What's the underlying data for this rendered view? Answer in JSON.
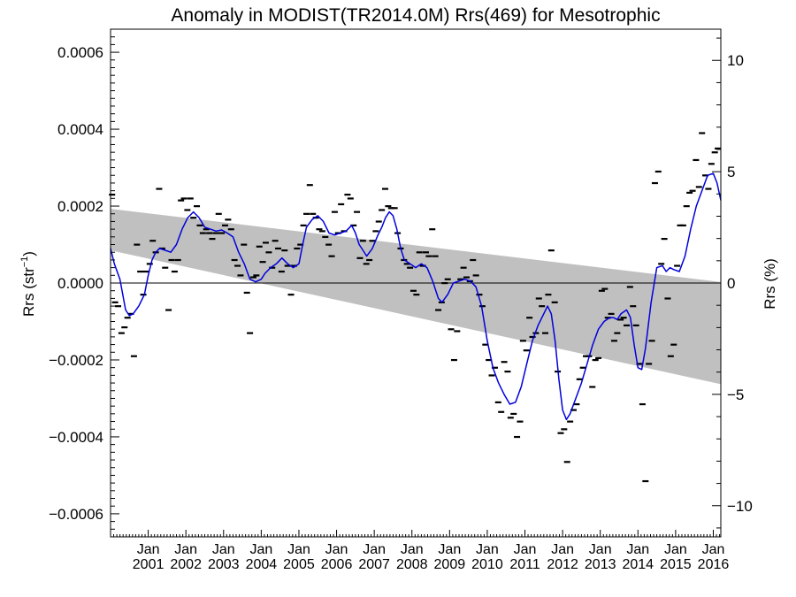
{
  "chart_data": {
    "type": "line",
    "title": "Anomaly in MODIST(TR2014.0M) Rrs(469) for Mesotrophic",
    "ylabel_base": "Rrs (str",
    "ylabel_sup": "−1",
    "ylabel_close": ")",
    "y2label": "Rrs (%)",
    "ylim": [
      -0.00066,
      0.00066
    ],
    "y2lim": [
      -11.4,
      11.4
    ],
    "yticks": [
      {
        "value": -0.0006,
        "label": "−0.0006"
      },
      {
        "value": -0.0004,
        "label": "−0.0004"
      },
      {
        "value": -0.0002,
        "label": "−0.0002"
      },
      {
        "value": 0.0,
        "label": "0.0000"
      },
      {
        "value": 0.0002,
        "label": "0.0002"
      },
      {
        "value": 0.0004,
        "label": "0.0004"
      },
      {
        "value": 0.0006,
        "label": "0.0006"
      }
    ],
    "y2ticks": [
      {
        "value": -10,
        "label": "−10"
      },
      {
        "value": -5,
        "label": "−5"
      },
      {
        "value": 0,
        "label": "0"
      },
      {
        "value": 5,
        "label": "5"
      },
      {
        "value": 10,
        "label": "10"
      }
    ],
    "xlim": [
      2000.0,
      2016.2
    ],
    "xticks": [
      {
        "value": 2001,
        "line1": "Jan",
        "line2": "2001"
      },
      {
        "value": 2002,
        "line1": "Jan",
        "line2": "2002"
      },
      {
        "value": 2003,
        "line1": "Jan",
        "line2": "2003"
      },
      {
        "value": 2004,
        "line1": "Jan",
        "line2": "2004"
      },
      {
        "value": 2005,
        "line1": "Jan",
        "line2": "2005"
      },
      {
        "value": 2006,
        "line1": "Jan",
        "line2": "2006"
      },
      {
        "value": 2007,
        "line1": "Jan",
        "line2": "2007"
      },
      {
        "value": 2008,
        "line1": "Jan",
        "line2": "2008"
      },
      {
        "value": 2009,
        "line1": "Jan",
        "line2": "2009"
      },
      {
        "value": 2010,
        "line1": "Jan",
        "line2": "2010"
      },
      {
        "value": 2011,
        "line1": "Jan",
        "line2": "2011"
      },
      {
        "value": 2012,
        "line1": "Jan",
        "line2": "2012"
      },
      {
        "value": 2013,
        "line1": "Jan",
        "line2": "2013"
      },
      {
        "value": 2014,
        "line1": "Jan",
        "line2": "2014"
      },
      {
        "value": 2015,
        "line1": "Jan",
        "line2": "2015"
      },
      {
        "value": 2016,
        "line1": "Jan",
        "line2": "2016"
      }
    ],
    "trend_band": {
      "upper": [
        [
          2000.0,
          0.000193
        ],
        [
          2016.2,
          2.5e-06
        ]
      ],
      "lower": [
        [
          2000.0,
          8.5e-05
        ],
        [
          2016.2,
          -0.000263
        ]
      ],
      "color": "#c0c0c0"
    },
    "zero_line": 0.0,
    "smoothed_series": {
      "color": "#0000dd",
      "points": [
        [
          2000.0,
          9e-05
        ],
        [
          2000.1,
          5e-05
        ],
        [
          2000.25,
          1e-05
        ],
        [
          2000.4,
          -7e-05
        ],
        [
          2000.5,
          -8.5e-05
        ],
        [
          2000.6,
          -8e-05
        ],
        [
          2000.75,
          -6e-05
        ],
        [
          2000.9,
          -3e-05
        ],
        [
          2001.0,
          2e-05
        ],
        [
          2001.1,
          6e-05
        ],
        [
          2001.2,
          8e-05
        ],
        [
          2001.3,
          9e-05
        ],
        [
          2001.45,
          8.5e-05
        ],
        [
          2001.6,
          8e-05
        ],
        [
          2001.75,
          0.0001
        ],
        [
          2001.9,
          0.00014
        ],
        [
          2002.05,
          0.00017
        ],
        [
          2002.2,
          0.000185
        ],
        [
          2002.35,
          0.00017
        ],
        [
          2002.5,
          0.000145
        ],
        [
          2002.65,
          0.00014
        ],
        [
          2002.8,
          0.000135
        ],
        [
          2002.95,
          0.000138
        ],
        [
          2003.1,
          0.00013
        ],
        [
          2003.25,
          0.00012
        ],
        [
          2003.4,
          8e-05
        ],
        [
          2003.55,
          5e-05
        ],
        [
          2003.7,
          1e-05
        ],
        [
          2003.85,
          3e-06
        ],
        [
          2004.0,
          1e-05
        ],
        [
          2004.1,
          2.5e-05
        ],
        [
          2004.25,
          4e-05
        ],
        [
          2004.4,
          5e-05
        ],
        [
          2004.55,
          6.5e-05
        ],
        [
          2004.7,
          5e-05
        ],
        [
          2004.85,
          4e-05
        ],
        [
          2005.0,
          5e-05
        ],
        [
          2005.1,
          0.0001
        ],
        [
          2005.2,
          0.000145
        ],
        [
          2005.35,
          0.000165
        ],
        [
          2005.5,
          0.000175
        ],
        [
          2005.65,
          0.00016
        ],
        [
          2005.8,
          0.00013
        ],
        [
          2005.95,
          0.000125
        ],
        [
          2006.1,
          0.00013
        ],
        [
          2006.25,
          0.000135
        ],
        [
          2006.4,
          0.00015
        ],
        [
          2006.5,
          0.00013
        ],
        [
          2006.6,
          0.0001
        ],
        [
          2006.7,
          8.5e-05
        ],
        [
          2006.8,
          7e-05
        ],
        [
          2006.95,
          9e-05
        ],
        [
          2007.1,
          0.000125
        ],
        [
          2007.2,
          0.000145
        ],
        [
          2007.3,
          0.00017
        ],
        [
          2007.4,
          0.000185
        ],
        [
          2007.5,
          0.000175
        ],
        [
          2007.6,
          0.00014
        ],
        [
          2007.7,
          9e-05
        ],
        [
          2007.8,
          6e-05
        ],
        [
          2007.95,
          5e-05
        ],
        [
          2008.1,
          4e-05
        ],
        [
          2008.25,
          5e-05
        ],
        [
          2008.4,
          4e-05
        ],
        [
          2008.55,
          5e-06
        ],
        [
          2008.7,
          -4e-05
        ],
        [
          2008.8,
          -5e-05
        ],
        [
          2008.95,
          -3e-05
        ],
        [
          2009.1,
          0.0
        ],
        [
          2009.25,
          5e-06
        ],
        [
          2009.4,
          1e-05
        ],
        [
          2009.55,
          5e-06
        ],
        [
          2009.7,
          -1e-05
        ],
        [
          2009.85,
          -6e-05
        ],
        [
          2010.0,
          -0.00015
        ],
        [
          2010.15,
          -0.00022
        ],
        [
          2010.3,
          -0.00026
        ],
        [
          2010.45,
          -0.00029
        ],
        [
          2010.6,
          -0.000315
        ],
        [
          2010.75,
          -0.00031
        ],
        [
          2010.9,
          -0.00027
        ],
        [
          2011.05,
          -0.00021
        ],
        [
          2011.2,
          -0.00015
        ],
        [
          2011.35,
          -0.00011
        ],
        [
          2011.5,
          -8e-05
        ],
        [
          2011.6,
          -6e-05
        ],
        [
          2011.7,
          -8e-05
        ],
        [
          2011.8,
          -0.00015
        ],
        [
          2011.9,
          -0.00025
        ],
        [
          2012.0,
          -0.00033
        ],
        [
          2012.1,
          -0.000355
        ],
        [
          2012.2,
          -0.00034
        ],
        [
          2012.35,
          -0.0003
        ],
        [
          2012.5,
          -0.00026
        ],
        [
          2012.65,
          -0.00021
        ],
        [
          2012.8,
          -0.00016
        ],
        [
          2012.95,
          -0.00012
        ],
        [
          2013.1,
          -0.0001
        ],
        [
          2013.25,
          -9e-05
        ],
        [
          2013.35,
          -9e-05
        ],
        [
          2013.45,
          -9.5e-05
        ],
        [
          2013.55,
          -8e-05
        ],
        [
          2013.7,
          -7e-05
        ],
        [
          2013.8,
          -9e-05
        ],
        [
          2013.9,
          -0.00016
        ],
        [
          2014.0,
          -0.00022
        ],
        [
          2014.1,
          -0.000225
        ],
        [
          2014.2,
          -0.00017
        ],
        [
          2014.35,
          -5e-05
        ],
        [
          2014.5,
          4e-05
        ],
        [
          2014.65,
          4.5e-05
        ],
        [
          2014.75,
          3e-05
        ],
        [
          2014.85,
          4e-05
        ],
        [
          2014.95,
          3.5e-05
        ],
        [
          2015.1,
          3e-05
        ],
        [
          2015.25,
          7e-05
        ],
        [
          2015.4,
          0.00014
        ],
        [
          2015.55,
          0.0002
        ],
        [
          2015.7,
          0.00024
        ],
        [
          2015.85,
          0.00028
        ],
        [
          2016.0,
          0.000285
        ],
        [
          2016.1,
          0.00026
        ],
        [
          2016.2,
          0.000215
        ]
      ]
    },
    "monthly_points": [
      [
        2000.04,
        0.00023
      ],
      [
        2000.12,
        -5e-05
      ],
      [
        2000.2,
        -6e-05
      ],
      [
        2000.29,
        -0.00013
      ],
      [
        2000.37,
        -0.000115
      ],
      [
        2000.45,
        -9e-05
      ],
      [
        2000.54,
        -8e-05
      ],
      [
        2000.62,
        -0.00019
      ],
      [
        2000.7,
        0.0001
      ],
      [
        2000.79,
        3e-05
      ],
      [
        2000.87,
        -3e-05
      ],
      [
        2000.95,
        3e-05
      ],
      [
        2001.04,
        5e-05
      ],
      [
        2001.12,
        0.00011
      ],
      [
        2001.2,
        8e-05
      ],
      [
        2001.29,
        0.000245
      ],
      [
        2001.37,
        9e-05
      ],
      [
        2001.45,
        4e-05
      ],
      [
        2001.54,
        -7e-05
      ],
      [
        2001.62,
        6e-05
      ],
      [
        2001.7,
        3e-05
      ],
      [
        2001.79,
        6e-05
      ],
      [
        2001.87,
        0.000215
      ],
      [
        2001.95,
        0.00022
      ],
      [
        2002.04,
        0.00019
      ],
      [
        2002.12,
        0.00022
      ],
      [
        2002.2,
        0.00017
      ],
      [
        2002.29,
        0.0002
      ],
      [
        2002.37,
        0.00015
      ],
      [
        2002.45,
        0.00013
      ],
      [
        2002.54,
        0.00014
      ],
      [
        2002.62,
        0.00013
      ],
      [
        2002.7,
        0.000115
      ],
      [
        2002.79,
        0.00013
      ],
      [
        2002.87,
        0.00018
      ],
      [
        2002.95,
        0.00013
      ],
      [
        2003.04,
        0.00015
      ],
      [
        2003.12,
        0.000165
      ],
      [
        2003.2,
        0.00014
      ],
      [
        2003.29,
        6e-05
      ],
      [
        2003.37,
        4.5e-05
      ],
      [
        2003.45,
        2e-05
      ],
      [
        2003.54,
        0.0001
      ],
      [
        2003.62,
        -2.5e-05
      ],
      [
        2003.7,
        -0.00013
      ],
      [
        2003.79,
        1.5e-05
      ],
      [
        2003.87,
        2e-05
      ],
      [
        2003.95,
        9.5e-05
      ],
      [
        2004.04,
        5.5e-05
      ],
      [
        2004.12,
        0.000105
      ],
      [
        2004.2,
        8e-05
      ],
      [
        2004.29,
        4e-05
      ],
      [
        2004.37,
        0.00011
      ],
      [
        2004.45,
        9e-05
      ],
      [
        2004.54,
        3e-05
      ],
      [
        2004.62,
        8.5e-05
      ],
      [
        2004.7,
        4.5e-05
      ],
      [
        2004.79,
        -3e-05
      ],
      [
        2004.87,
        4.5e-05
      ],
      [
        2004.95,
        9e-05
      ],
      [
        2005.04,
        0.0001
      ],
      [
        2005.12,
        0.00015
      ],
      [
        2005.2,
        0.00018
      ],
      [
        2005.29,
        0.000255
      ],
      [
        2005.37,
        0.00018
      ],
      [
        2005.45,
        0.00017
      ],
      [
        2005.54,
        0.00014
      ],
      [
        2005.62,
        0.000135
      ],
      [
        2005.7,
        0.00012
      ],
      [
        2005.79,
        0.0001
      ],
      [
        2005.87,
        7e-05
      ],
      [
        2005.95,
        0.000185
      ],
      [
        2006.04,
        0.00013
      ],
      [
        2006.12,
        0.000205
      ],
      [
        2006.2,
        0.000135
      ],
      [
        2006.29,
        0.00023
      ],
      [
        2006.37,
        0.00022
      ],
      [
        2006.45,
        0.00015
      ],
      [
        2006.54,
        0.000185
      ],
      [
        2006.62,
        6.5e-05
      ],
      [
        2006.7,
        0.00011
      ],
      [
        2006.79,
        5e-05
      ],
      [
        2006.87,
        6e-05
      ],
      [
        2006.95,
        0.00011
      ],
      [
        2007.04,
        0.000135
      ],
      [
        2007.12,
        0.00016
      ],
      [
        2007.2,
        0.00019
      ],
      [
        2007.29,
        0.000245
      ],
      [
        2007.37,
        0.0002
      ],
      [
        2007.45,
        0.000195
      ],
      [
        2007.54,
        0.000195
      ],
      [
        2007.62,
        0.00013
      ],
      [
        2007.7,
        9e-05
      ],
      [
        2007.79,
        6e-05
      ],
      [
        2007.87,
        5e-05
      ],
      [
        2007.95,
        4e-05
      ],
      [
        2008.04,
        -2e-05
      ],
      [
        2008.12,
        -3e-05
      ],
      [
        2008.2,
        8e-05
      ],
      [
        2008.29,
        4.5e-05
      ],
      [
        2008.37,
        8e-05
      ],
      [
        2008.45,
        7e-05
      ],
      [
        2008.54,
        0.00014
      ],
      [
        2008.62,
        7e-05
      ],
      [
        2008.7,
        -7e-05
      ],
      [
        2008.79,
        -5e-05
      ],
      [
        2008.87,
        0.0
      ],
      [
        2008.95,
        1e-05
      ],
      [
        2009.04,
        -0.00012
      ],
      [
        2009.12,
        -0.0002
      ],
      [
        2009.2,
        -0.000125
      ],
      [
        2009.29,
        1e-05
      ],
      [
        2009.37,
        4e-05
      ],
      [
        2009.45,
        1.5e-05
      ],
      [
        2009.54,
        5e-06
      ],
      [
        2009.62,
        6e-05
      ],
      [
        2009.7,
        2e-05
      ],
      [
        2009.79,
        -3e-05
      ],
      [
        2009.87,
        -6e-05
      ],
      [
        2009.95,
        -0.00016
      ],
      [
        2010.04,
        -0.0002
      ],
      [
        2010.12,
        -0.00024
      ],
      [
        2010.2,
        -0.00022
      ],
      [
        2010.29,
        -0.00031
      ],
      [
        2010.37,
        -0.000335
      ],
      [
        2010.45,
        -0.000205
      ],
      [
        2010.54,
        -0.00023
      ],
      [
        2010.62,
        -0.00035
      ],
      [
        2010.7,
        -0.00034
      ],
      [
        2010.79,
        -0.0004
      ],
      [
        2010.87,
        -0.00036
      ],
      [
        2010.95,
        -0.00015
      ],
      [
        2011.04,
        -0.000175
      ],
      [
        2011.12,
        -9e-05
      ],
      [
        2011.2,
        -0.00014
      ],
      [
        2011.29,
        -0.00013
      ],
      [
        2011.37,
        -4e-05
      ],
      [
        2011.45,
        -6e-05
      ],
      [
        2011.54,
        -0.00013
      ],
      [
        2011.62,
        -3e-05
      ],
      [
        2011.7,
        8.5e-05
      ],
      [
        2011.79,
        -5e-05
      ],
      [
        2011.87,
        -0.00023
      ],
      [
        2011.95,
        -0.00039
      ],
      [
        2012.04,
        -0.00038
      ],
      [
        2012.12,
        -0.000465
      ],
      [
        2012.2,
        -0.00036
      ],
      [
        2012.29,
        -0.00033
      ],
      [
        2012.37,
        -0.000315
      ],
      [
        2012.45,
        -0.00025
      ],
      [
        2012.54,
        -0.00022
      ],
      [
        2012.62,
        -0.00019
      ],
      [
        2012.7,
        -0.00019
      ],
      [
        2012.79,
        -0.00027
      ],
      [
        2012.87,
        -0.0002
      ],
      [
        2012.95,
        -0.000195
      ],
      [
        2013.04,
        -2e-05
      ],
      [
        2013.12,
        -1.5e-05
      ],
      [
        2013.2,
        -9e-05
      ],
      [
        2013.29,
        -8e-05
      ],
      [
        2013.37,
        -0.00015
      ],
      [
        2013.45,
        -0.00013
      ],
      [
        2013.54,
        -9.5e-05
      ],
      [
        2013.62,
        -9e-05
      ],
      [
        2013.7,
        -0.00011
      ],
      [
        2013.79,
        -1e-05
      ],
      [
        2013.87,
        -6e-05
      ],
      [
        2013.95,
        -0.00011
      ],
      [
        2014.04,
        -0.00021
      ],
      [
        2014.12,
        -0.000315
      ],
      [
        2014.2,
        -0.000515
      ],
      [
        2014.29,
        -0.00021
      ],
      [
        2014.37,
        -0.00015
      ],
      [
        2014.45,
        0.00026
      ],
      [
        2014.54,
        0.00029
      ],
      [
        2014.62,
        5e-05
      ],
      [
        2014.7,
        0.000115
      ],
      [
        2014.79,
        -4e-05
      ],
      [
        2014.87,
        -0.00019
      ],
      [
        2014.95,
        -0.00016
      ],
      [
        2015.04,
        4.5e-05
      ],
      [
        2015.12,
        0.00015
      ],
      [
        2015.2,
        0.00015
      ],
      [
        2015.29,
        0.0002
      ],
      [
        2015.37,
        0.000235
      ],
      [
        2015.45,
        0.00024
      ],
      [
        2015.54,
        0.00032
      ],
      [
        2015.62,
        0.00025
      ],
      [
        2015.7,
        0.00039
      ],
      [
        2015.79,
        0.00028
      ],
      [
        2015.87,
        0.000245
      ],
      [
        2015.95,
        0.00031
      ],
      [
        2016.04,
        0.00034
      ],
      [
        2016.12,
        0.00035
      ]
    ]
  }
}
